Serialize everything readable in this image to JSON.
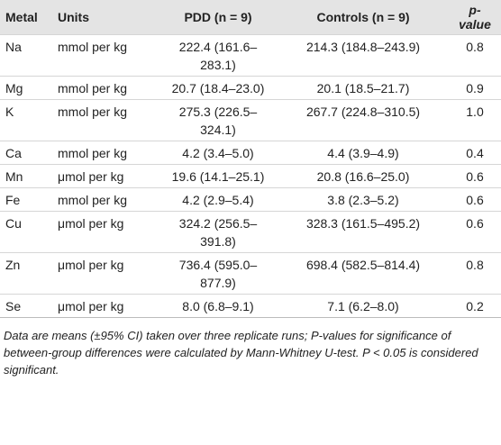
{
  "table": {
    "header": [
      "Metal",
      "Units",
      "PDD (n = 9)",
      "Controls (n = 9)",
      "p-value"
    ],
    "rows": [
      [
        "Na",
        "mmol per kg",
        "222.4 (161.6–283.1)",
        "214.3 (184.8–243.9)",
        "0.8"
      ],
      [
        "Mg",
        "mmol per kg",
        "20.7 (18.4–23.0)",
        "20.1 (18.5–21.7)",
        "0.9"
      ],
      [
        "K",
        "mmol per kg",
        "275.3 (226.5–324.1)",
        "267.7 (224.8–310.5)",
        "1.0"
      ],
      [
        "Ca",
        "mmol per kg",
        "4.2 (3.4–5.0)",
        "4.4 (3.9–4.9)",
        "0.4"
      ],
      [
        "Mn",
        "μmol per kg",
        "19.6 (14.1–25.1)",
        "20.8 (16.6–25.0)",
        "0.6"
      ],
      [
        "Fe",
        "mmol per kg",
        "4.2 (2.9–5.4)",
        "3.8 (2.3–5.2)",
        "0.6"
      ],
      [
        "Cu",
        "μmol per kg",
        "324.2 (256.5–391.8)",
        "328.3 (161.5–495.2)",
        "0.6"
      ],
      [
        "Zn",
        "μmol per kg",
        "736.4 (595.0–877.9)",
        "698.4 (582.5–814.4)",
        "0.8"
      ],
      [
        "Se",
        "μmol per kg",
        "8.0 (6.8–9.1)",
        "7.1 (6.2–8.0)",
        "0.2"
      ]
    ],
    "note": "Data are means (±95% CI) taken over three replicate runs; P-values for significance of between-group differences were calculated by Mann-Whitney U-test. P < 0.05 is considered significant."
  }
}
